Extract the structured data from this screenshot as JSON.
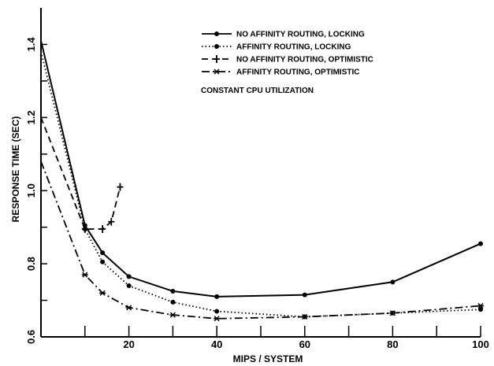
{
  "chart_data": {
    "type": "line",
    "title": "",
    "xlabel": "MIPS / SYSTEM",
    "ylabel": "RESPONSE TIME (SEC)",
    "xlim": [
      0,
      100
    ],
    "ylim": [
      0.6,
      1.5
    ],
    "x_ticks": [
      20,
      40,
      60,
      80,
      100
    ],
    "y_ticks": [
      0.6,
      0.8,
      1.0,
      1.2,
      1.4
    ],
    "x_tick_labels": [
      "20",
      "40",
      "60",
      "80",
      "100"
    ],
    "y_tick_labels": [
      "0.6",
      "0.8",
      "1.0",
      "1.2",
      "1.4"
    ],
    "grid": false,
    "legend_position": "top-right",
    "annotation": "CONSTANT CPU UTILIZATION",
    "series": [
      {
        "name": "NO AFFINITY ROUTING, LOCKING",
        "style": "solid",
        "marker": "dot",
        "x": [
          0,
          10,
          14,
          20,
          30,
          40,
          60,
          80,
          100
        ],
        "y": [
          1.41,
          0.905,
          0.83,
          0.765,
          0.725,
          0.71,
          0.715,
          0.75,
          0.855
        ]
      },
      {
        "name": "AFFINITY ROUTING, LOCKING",
        "style": "dotted",
        "marker": "dot",
        "x": [
          0,
          10,
          14,
          20,
          30,
          40,
          60,
          80,
          100
        ],
        "y": [
          1.38,
          0.895,
          0.805,
          0.74,
          0.695,
          0.67,
          0.655,
          0.665,
          0.675
        ]
      },
      {
        "name": "NO AFFINITY ROUTING, OPTIMISTIC",
        "style": "dashed",
        "marker": "plus",
        "x": [
          0,
          10,
          14,
          16,
          18
        ],
        "y": [
          1.2,
          0.895,
          0.895,
          0.915,
          1.01
        ]
      },
      {
        "name": "AFFINITY ROUTING, OPTIMISTIC",
        "style": "dash-dot",
        "marker": "star",
        "x": [
          0,
          10,
          14,
          20,
          30,
          40,
          60,
          80,
          100
        ],
        "y": [
          1.08,
          0.77,
          0.72,
          0.68,
          0.66,
          0.65,
          0.655,
          0.665,
          0.685
        ]
      }
    ]
  }
}
